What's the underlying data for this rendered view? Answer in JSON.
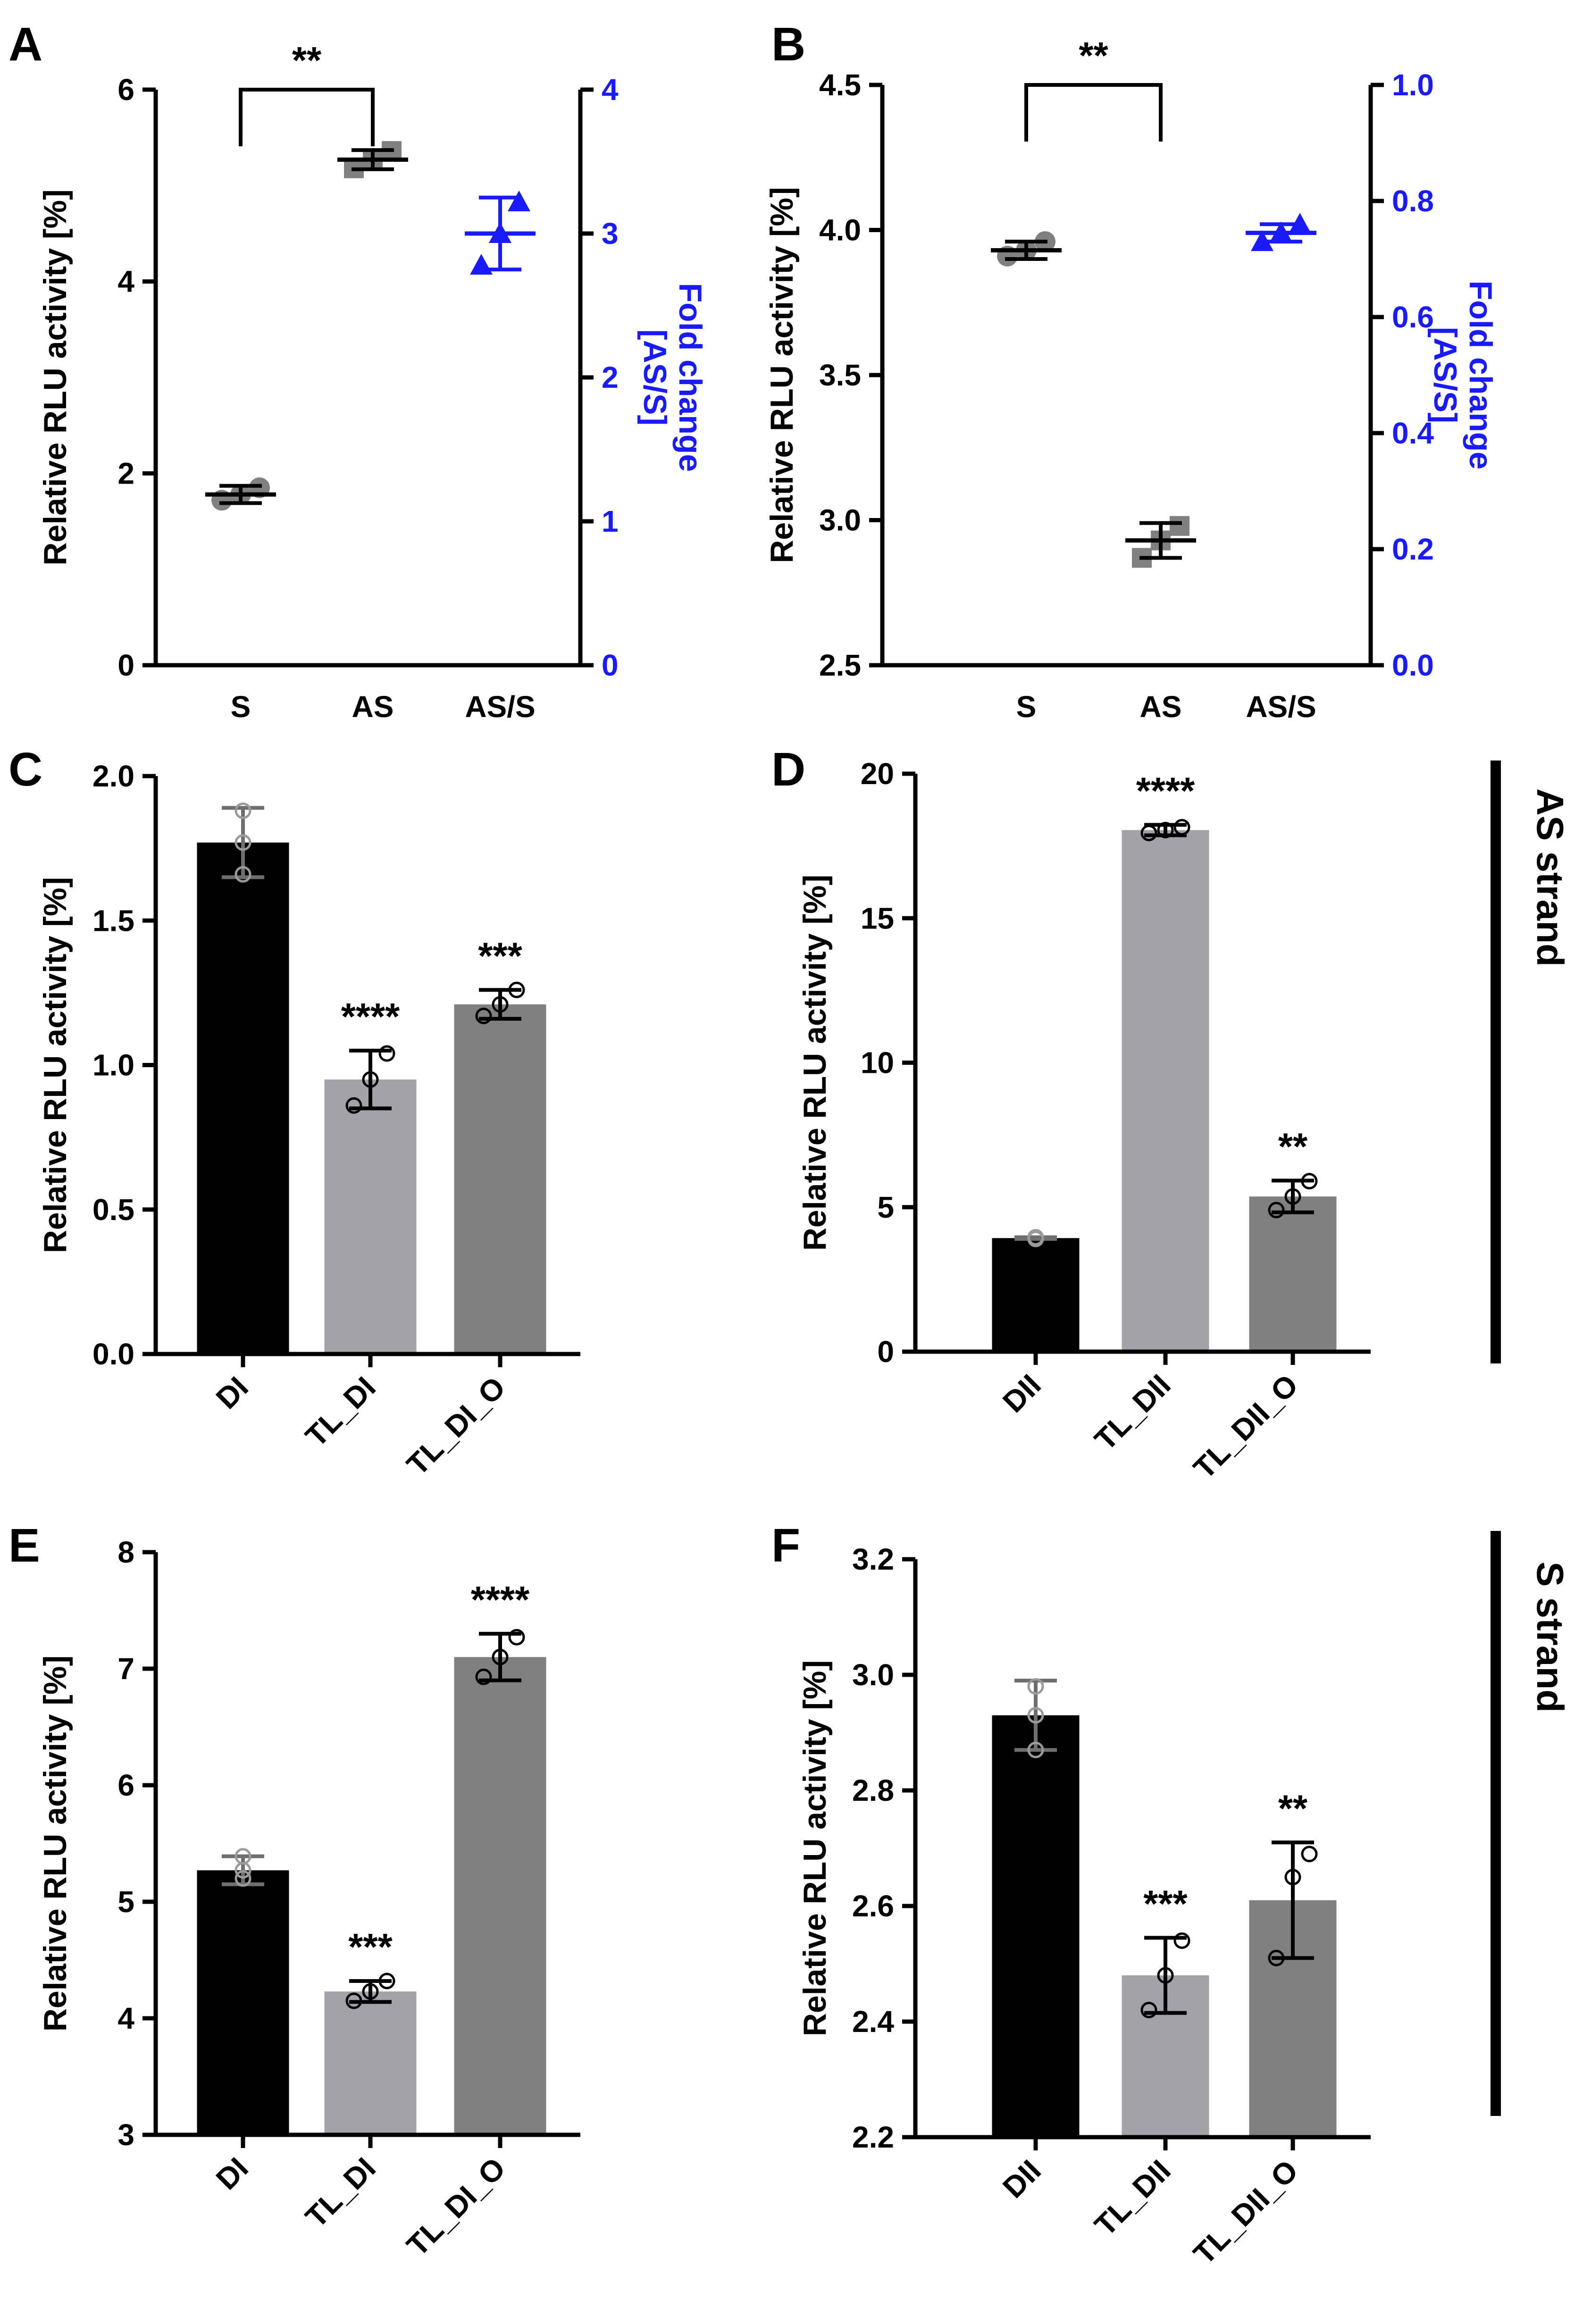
{
  "chart_data": [
    {
      "panel": "A",
      "type": "scatter",
      "categories": [
        "S",
        "AS",
        "AS/S"
      ],
      "ylabel": "Relative RLU activity [%]",
      "y2label_line1": "Fold change",
      "y2label_line2": "[AS/S]",
      "ylim": [
        0,
        6
      ],
      "yticks": [
        0,
        2,
        4,
        6
      ],
      "y2lim": [
        0,
        4
      ],
      "y2ticks": [
        0,
        1,
        2,
        3,
        4
      ],
      "series": [
        {
          "name": "S",
          "axis": "left",
          "mean": 1.78,
          "sd": 0.09,
          "points": [
            1.72,
            1.78,
            1.85
          ],
          "color": "#808080",
          "marker": "circle"
        },
        {
          "name": "AS",
          "axis": "left",
          "mean": 5.27,
          "sd": 0.1,
          "points": [
            5.18,
            5.27,
            5.36
          ],
          "color": "#808080",
          "marker": "square"
        },
        {
          "name": "AS/S",
          "axis": "right",
          "mean": 3.0,
          "sd": 0.25,
          "points": [
            2.78,
            3.0,
            3.22
          ],
          "color": "#1a1aff",
          "marker": "triangle"
        }
      ],
      "significance": [
        {
          "from": "S",
          "to": "AS",
          "label": "**"
        }
      ]
    },
    {
      "panel": "B",
      "type": "scatter",
      "categories": [
        "S",
        "AS",
        "AS/S"
      ],
      "ylabel": "Relative RLU activity [%]",
      "y2label_line1": "Fold change",
      "y2label_line2": "[AS/S]",
      "ylim": [
        2.5,
        4.5
      ],
      "yticks": [
        "2.5",
        "3.0",
        "3.5",
        "4.0",
        "4.5"
      ],
      "y2lim": [
        0,
        1
      ],
      "y2ticks": [
        "0.0",
        "0.2",
        "0.4",
        "0.6",
        "0.8",
        "1.0"
      ],
      "series": [
        {
          "name": "S",
          "axis": "left",
          "mean": 3.93,
          "sd": 0.03,
          "points": [
            3.91,
            3.93,
            3.96
          ],
          "color": "#808080",
          "marker": "circle"
        },
        {
          "name": "AS",
          "axis": "left",
          "mean": 2.93,
          "sd": 0.06,
          "points": [
            2.87,
            2.93,
            2.98
          ],
          "color": "#808080",
          "marker": "square"
        },
        {
          "name": "AS/S",
          "axis": "right",
          "mean": 0.745,
          "sd": 0.015,
          "points": [
            0.73,
            0.745,
            0.76
          ],
          "color": "#1a1aff",
          "marker": "triangle"
        }
      ],
      "significance": [
        {
          "from": "S",
          "to": "AS",
          "label": "**"
        }
      ]
    },
    {
      "panel": "C",
      "type": "bar",
      "categories": [
        "DI",
        "TL_DI",
        "TL_DI_O"
      ],
      "values": [
        1.77,
        0.95,
        1.21
      ],
      "errors": [
        0.12,
        0.1,
        0.05
      ],
      "points": [
        [
          1.66,
          1.77,
          1.88
        ],
        [
          0.86,
          0.95,
          1.04
        ],
        [
          1.17,
          1.21,
          1.26
        ]
      ],
      "bar_colors": [
        "#000000",
        "#a2a2a8",
        "#808080"
      ],
      "stars": [
        "",
        "****",
        "***"
      ],
      "ylabel": "Relative RLU activity [%]",
      "ylim": [
        0,
        2
      ],
      "yticks": [
        "0.0",
        "0.5",
        "1.0",
        "1.5",
        "2.0"
      ]
    },
    {
      "panel": "D",
      "type": "bar",
      "categories": [
        "DII",
        "TL_DII",
        "TL_DII_O"
      ],
      "values": [
        3.93,
        18.05,
        5.37
      ],
      "errors": [
        0.03,
        0.18,
        0.55
      ],
      "points": [
        [
          3.9,
          3.93,
          3.96
        ],
        [
          17.95,
          18.05,
          18.15
        ],
        [
          4.9,
          5.37,
          5.9
        ]
      ],
      "bar_colors": [
        "#000000",
        "#a2a2a8",
        "#808080"
      ],
      "stars": [
        "",
        "****",
        "**"
      ],
      "ylabel": "Relative RLU activity [%]",
      "ylim": [
        0,
        20
      ],
      "yticks": [
        "0",
        "5",
        "10",
        "15",
        "20"
      ]
    },
    {
      "panel": "E",
      "type": "bar",
      "categories": [
        "DI",
        "TL_DI",
        "TL_DI_O"
      ],
      "values": [
        5.27,
        4.23,
        7.1
      ],
      "errors": [
        0.12,
        0.09,
        0.2
      ],
      "points": [
        [
          5.2,
          5.27,
          5.39
        ],
        [
          4.15,
          4.23,
          4.32
        ],
        [
          6.93,
          7.1,
          7.27
        ]
      ],
      "bar_colors": [
        "#000000",
        "#a2a2a8",
        "#808080"
      ],
      "stars": [
        "",
        "***",
        "****"
      ],
      "ylabel": "Relative RLU activity [%]",
      "ylim": [
        3,
        8
      ],
      "yticks": [
        "3",
        "4",
        "5",
        "6",
        "7",
        "8"
      ]
    },
    {
      "panel": "F",
      "type": "bar",
      "categories": [
        "DII",
        "TL_DII",
        "TL_DII_O"
      ],
      "values": [
        2.93,
        2.48,
        2.61
      ],
      "errors": [
        0.06,
        0.065,
        0.1
      ],
      "points": [
        [
          2.87,
          2.93,
          2.98
        ],
        [
          2.42,
          2.48,
          2.54
        ],
        [
          2.51,
          2.65,
          2.69
        ]
      ],
      "bar_colors": [
        "#000000",
        "#a2a2a8",
        "#808080"
      ],
      "stars": [
        "",
        "***",
        "**"
      ],
      "ylabel": "Relative RLU activity [%]",
      "ylim": [
        2.2,
        3.2
      ],
      "yticks": [
        "2.2",
        "2.4",
        "2.6",
        "2.8",
        "3.0",
        "3.2"
      ]
    }
  ],
  "side_labels": {
    "as_strand": "AS strand",
    "s_strand": "S strand"
  }
}
